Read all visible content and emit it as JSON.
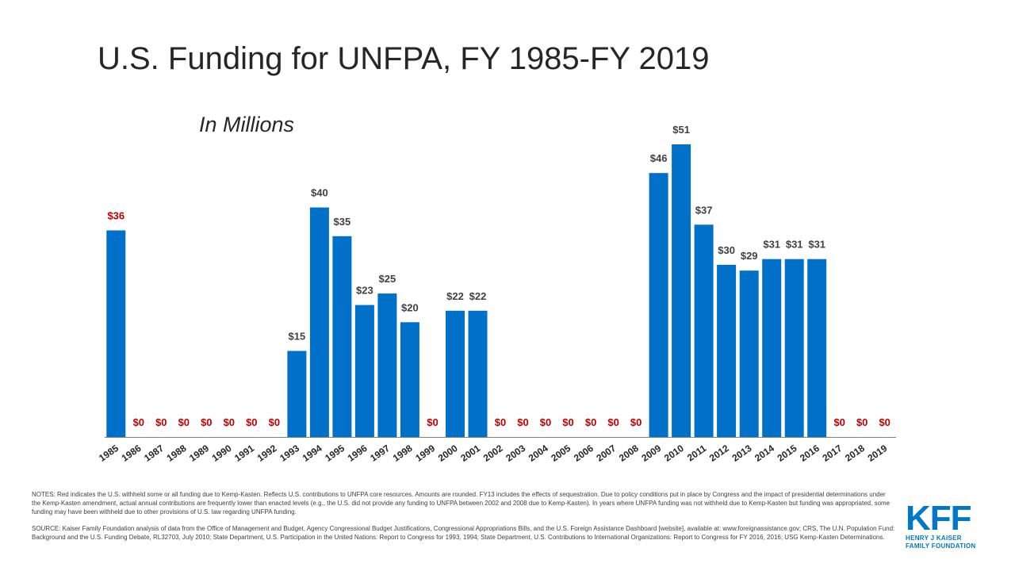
{
  "header": {
    "title": "U.S. Funding for UNFPA, FY 1985-FY 2019",
    "subtitle": "In Millions"
  },
  "colors": {
    "bar": "#0070c8",
    "withheld_label": "#c00000",
    "value_label": "#404040",
    "axis": "#808080",
    "logo": "#0077c8"
  },
  "chart_data": {
    "type": "bar",
    "categories": [
      "1985",
      "1986",
      "1987",
      "1988",
      "1989",
      "1990",
      "1991",
      "1992",
      "1993",
      "1994",
      "1995",
      "1996",
      "1997",
      "1998",
      "1999",
      "2000",
      "2001",
      "2002",
      "2003",
      "2004",
      "2005",
      "2006",
      "2007",
      "2008",
      "2009",
      "2010",
      "2011",
      "2012",
      "2013",
      "2014",
      "2015",
      "2016",
      "2017",
      "2018",
      "2019"
    ],
    "values": [
      36,
      0,
      0,
      0,
      0,
      0,
      0,
      0,
      15,
      40,
      35,
      23,
      25,
      20,
      0,
      22,
      22,
      0,
      0,
      0,
      0,
      0,
      0,
      0,
      46,
      51,
      37,
      30,
      29,
      31,
      31,
      31,
      0,
      0,
      0
    ],
    "labels": [
      "$36",
      "$0",
      "$0",
      "$0",
      "$0",
      "$0",
      "$0",
      "$0",
      "$15",
      "$40",
      "$35",
      "$23",
      "$25",
      "$20",
      "$0",
      "$22",
      "$22",
      "$0",
      "$0",
      "$0",
      "$0",
      "$0",
      "$0",
      "$0",
      "$46",
      "$51",
      "$37",
      "$30",
      "$29",
      "$31",
      "$31",
      "$31",
      "$0",
      "$0",
      "$0"
    ],
    "withheld": [
      true,
      true,
      true,
      true,
      true,
      true,
      true,
      true,
      false,
      false,
      false,
      false,
      false,
      false,
      true,
      false,
      false,
      true,
      true,
      true,
      true,
      true,
      true,
      true,
      false,
      false,
      false,
      false,
      false,
      false,
      false,
      false,
      true,
      true,
      true
    ],
    "title": "U.S. Funding for UNFPA, FY 1985-FY 2019",
    "subtitle": "In Millions",
    "xlabel": "",
    "ylabel": "",
    "ylim": [
      0,
      51
    ],
    "grid": false,
    "legend": "none"
  },
  "notes": {
    "notes_text": "NOTES: Red indicates the U.S. withheld some or all funding due to Kemp-Kasten. Reflects U.S. contributions to UNFPA core resources. Amounts are rounded. FY13 includes the effects of sequestration. Due to policy conditions put in place by Congress and the impact of presidential determinations under the Kemp-Kasten amendment, actual annual contributions are frequently lower than enacted levels (e.g., the U.S. did not provide any funding to UNFPA between 2002 and 2008 due to Kemp-Kasten). In years where UNFPA funding was not withheld due to Kemp-Kasten but funding was appropriated, some funding may have been withheld due to other provisions of U.S. law regarding UNFPA funding.",
    "source_text": "SOURCE: Kaiser Family Foundation analysis of data from the Office of Management and Budget, Agency Congressional Budget Justifications, Congressional Appropriations Bills, and the U.S. Foreign Assistance Dashboard [website], available at: www.foreignassistance.gov; CRS, The U.N. Population Fund: Background and the U.S. Funding Debate, RL32703, July 2010; State Department, U.S. Participation in the United Nations: Report to Congress for 1993, 1994; State Department, U.S. Contributions to International Organizations: Report to Congress for FY 2016, 2016; USG Kemp-Kasten Determinations."
  },
  "logo": {
    "mark": "KFF",
    "line1": "HENRY J KAISER",
    "line2": "FAMILY FOUNDATION"
  }
}
